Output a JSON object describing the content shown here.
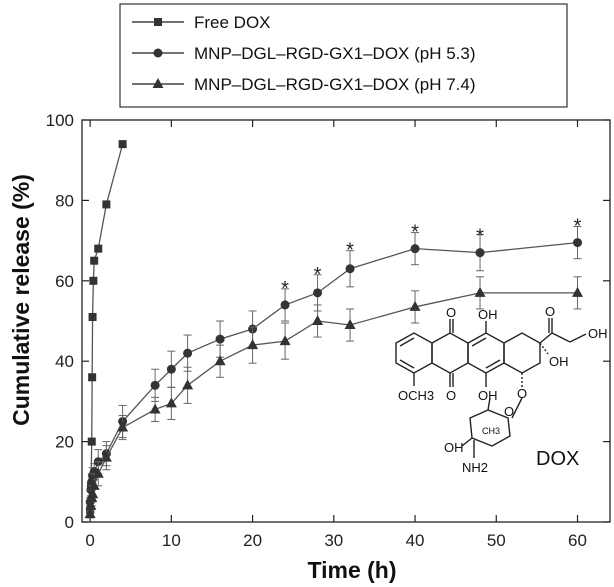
{
  "chart_data": {
    "type": "line",
    "xlabel": "Time (h)",
    "ylabel": "Cumulative release (%)",
    "xlim": [
      -1,
      64
    ],
    "ylim": [
      0,
      100
    ],
    "xticks": [
      0,
      10,
      20,
      30,
      40,
      50,
      60
    ],
    "yticks": [
      0,
      20,
      40,
      60,
      80,
      100
    ],
    "legend_position": "top",
    "series": [
      {
        "name": "Free DOX",
        "marker": "square",
        "color": "#333333",
        "x": [
          0,
          0.1,
          0.2,
          0.25,
          0.3,
          0.4,
          0.5,
          1,
          2,
          4
        ],
        "y": [
          3,
          9,
          20,
          36,
          51,
          60,
          65,
          68,
          79,
          94
        ],
        "err": [
          0,
          0,
          0,
          0,
          0,
          0,
          0,
          0,
          0,
          0
        ]
      },
      {
        "name": "MNP–DGL–RGD-GX1–DOX (pH 5.3)",
        "marker": "circle",
        "color": "#333333",
        "x": [
          0,
          0.1,
          0.2,
          0.3,
          0.5,
          1,
          2,
          4,
          8,
          10,
          12,
          16,
          20,
          24,
          28,
          32,
          40,
          48,
          60
        ],
        "y": [
          5,
          8,
          10,
          11.5,
          12.5,
          15,
          17,
          25,
          34,
          38,
          42,
          45.5,
          48,
          54,
          57,
          63,
          68,
          67,
          69.5
        ],
        "err": [
          1,
          1.5,
          2,
          2,
          2,
          3,
          3,
          4,
          4,
          4.5,
          4.5,
          4.5,
          4.5,
          4,
          4.5,
          4.5,
          4,
          4.5,
          4
        ]
      },
      {
        "name": "MNP–DGL–RGD-GX1–DOX (pH 7.4)",
        "marker": "triangle",
        "color": "#333333",
        "x": [
          0,
          0.1,
          0.2,
          0.3,
          0.5,
          1,
          2,
          4,
          8,
          10,
          12,
          16,
          20,
          24,
          28,
          32,
          40,
          48,
          60
        ],
        "y": [
          2,
          4,
          6,
          7,
          9,
          12,
          16,
          23.5,
          28,
          29.5,
          34,
          40,
          44,
          45,
          50,
          49,
          53.5,
          57,
          57
        ],
        "err": [
          1,
          1.5,
          2,
          2,
          3,
          3,
          3,
          3,
          3,
          4,
          4.5,
          4,
          4.5,
          4.5,
          4,
          4,
          4,
          4,
          4
        ]
      }
    ],
    "annotations": [
      {
        "text": "*",
        "x": 24,
        "y": 58.5
      },
      {
        "text": "*",
        "x": 28,
        "y": 62
      },
      {
        "text": "*",
        "x": 32,
        "y": 68
      },
      {
        "text": "*",
        "x": 40,
        "y": 72.5
      },
      {
        "text": "*",
        "x": 48,
        "y": 71.5
      },
      {
        "text": "*",
        "x": 60,
        "y": 74
      }
    ],
    "inset": {
      "label": "DOX",
      "atoms": [
        "O",
        "OH",
        "O",
        "OH",
        "OH",
        "OCH3",
        "O",
        "OH",
        "O",
        "O",
        "OH",
        "CH3",
        "NH2"
      ]
    }
  }
}
